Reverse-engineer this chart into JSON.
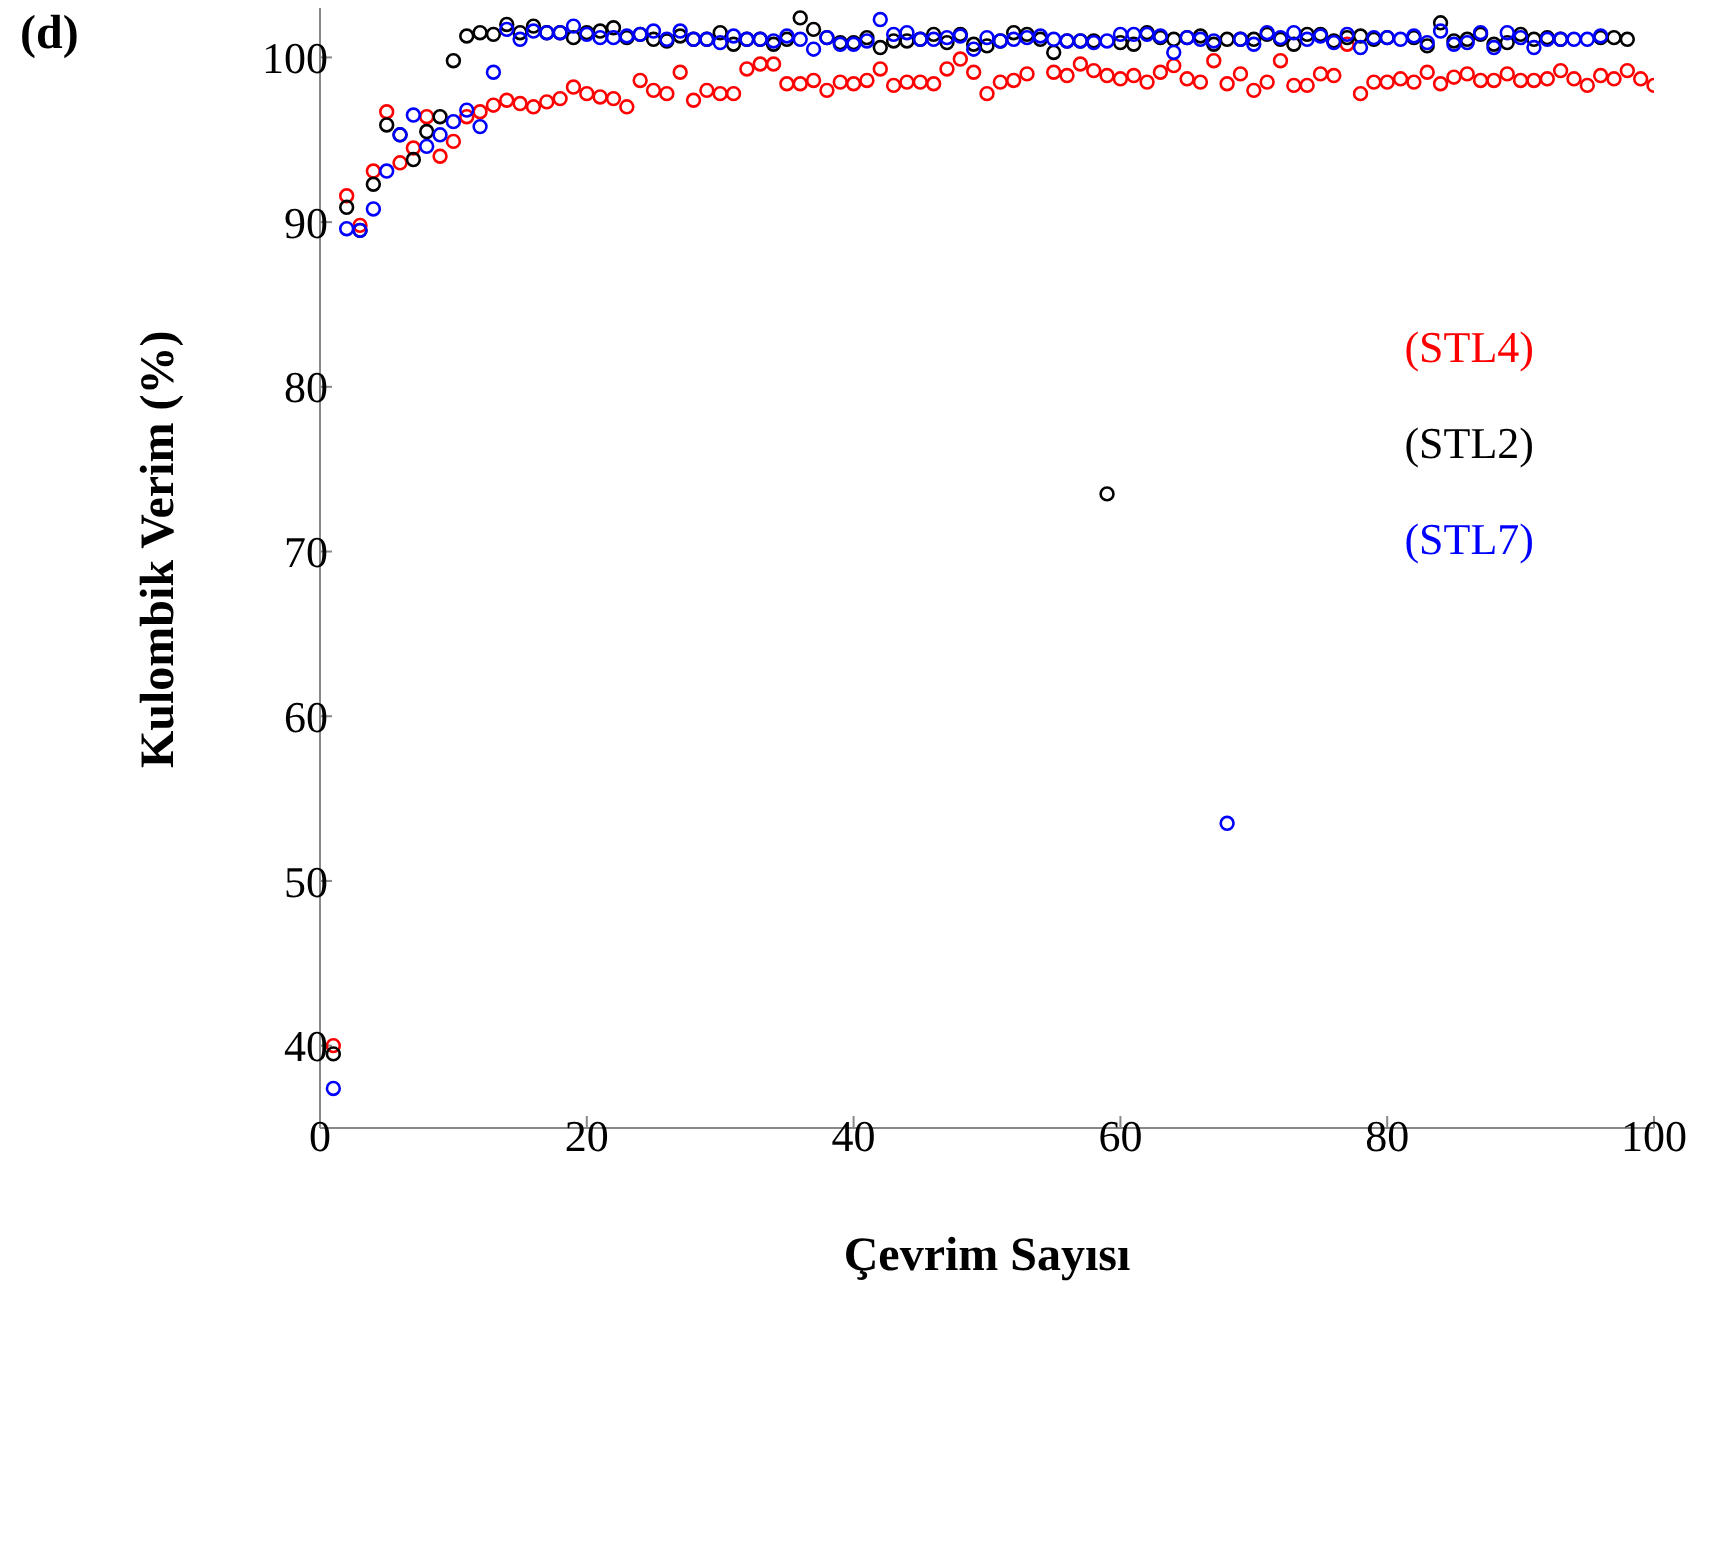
{
  "chart_data": {
    "type": "scatter",
    "title": "(d)",
    "xlabel": "Çevrim Sayısı",
    "ylabel": "Kulombik Verim (%)",
    "xlim": [
      0,
      100
    ],
    "xticks": [
      0,
      20,
      40,
      60,
      80,
      100
    ],
    "ylim": [
      35,
      103
    ],
    "yticks": [
      40,
      50,
      60,
      70,
      80,
      90,
      100
    ],
    "marker": "circle",
    "legend": "right",
    "x": [
      1,
      2,
      3,
      4,
      5,
      6,
      7,
      8,
      9,
      10,
      11,
      12,
      13,
      14,
      15,
      16,
      17,
      18,
      19,
      20,
      21,
      22,
      23,
      24,
      25,
      26,
      27,
      28,
      29,
      30,
      31,
      32,
      33,
      34,
      35,
      36,
      37,
      38,
      39,
      40,
      41,
      42,
      43,
      44,
      45,
      46,
      47,
      48,
      49,
      50,
      51,
      52,
      53,
      54,
      55,
      56,
      57,
      58,
      59,
      60,
      61,
      62,
      63,
      64,
      65,
      66,
      67,
      68,
      69,
      70,
      71,
      72,
      73,
      74,
      75,
      76,
      77,
      78,
      79,
      80,
      81,
      82,
      83,
      84,
      85,
      86,
      87,
      88,
      89,
      90,
      91,
      92,
      93,
      94,
      95,
      96,
      97,
      98,
      99,
      100
    ],
    "series": [
      {
        "name": "(STL4)",
        "color": "#ff0000",
        "values": [
          40,
          91.6,
          89.8,
          93.1,
          96.7,
          93.6,
          94.5,
          96.4,
          94,
          94.9,
          96.4,
          96.7,
          97.1,
          97.4,
          97.2,
          97,
          97.3,
          97.5,
          98.2,
          97.8,
          97.6,
          97.5,
          97,
          98.6,
          98,
          97.8,
          99.1,
          97.4,
          98,
          97.8,
          97.8,
          99.3,
          99.6,
          99.6,
          98.4,
          98.4,
          98.6,
          98,
          98.5,
          98.4,
          98.6,
          99.3,
          98.3,
          98.5,
          98.5,
          98.4,
          99.3,
          99.9,
          99.1,
          97.8,
          98.5,
          98.6,
          99,
          null,
          99.1,
          98.9,
          99.6,
          99.2,
          98.9,
          98.7,
          98.9,
          98.5,
          99.1,
          99.5,
          98.7,
          98.5,
          99.8,
          98.4,
          99,
          98,
          98.5,
          99.8,
          98.3,
          98.3,
          99,
          98.9,
          100.8,
          97.8,
          98.5,
          98.5,
          98.7,
          98.5,
          99.1,
          98.4,
          98.8,
          99,
          98.6,
          98.6,
          99,
          98.6,
          98.6,
          98.7,
          99.2,
          98.7,
          98.3,
          98.9,
          98.7,
          99.2,
          98.7,
          98.3
        ]
      },
      {
        "name": "(STL2)",
        "color": "#000000",
        "values": [
          39.5,
          90.9,
          89.5,
          92.3,
          95.9,
          95.3,
          93.8,
          95.5,
          96.4,
          99.8,
          101.3,
          101.5,
          101.4,
          102,
          101.5,
          101.9,
          101.5,
          101.5,
          101.2,
          101.5,
          101.6,
          101.8,
          101.2,
          101.4,
          101.1,
          101,
          101.3,
          101.1,
          101.1,
          101.5,
          100.8,
          101.1,
          101.1,
          100.8,
          101.1,
          102.4,
          101.7,
          101.2,
          100.9,
          100.9,
          101.2,
          100.6,
          101,
          101,
          101.1,
          101.4,
          100.9,
          101.4,
          100.8,
          100.7,
          101,
          101.5,
          101.4,
          101.1,
          100.3,
          101,
          101,
          101,
          73.5,
          100.9,
          100.8,
          101.5,
          101.2,
          101.1,
          101.2,
          101.3,
          100.8,
          101.1,
          101.1,
          101.1,
          101.4,
          101.1,
          100.8,
          101.4,
          101.4,
          101,
          101.2,
          101.3,
          101.1,
          101.2,
          null,
          101.2,
          100.7,
          102.1,
          101,
          101.1,
          101.4,
          100.8,
          100.9,
          101.4,
          101.1,
          101.2,
          101.1,
          null,
          null,
          101.2,
          101.2,
          101.1,
          null,
          null
        ]
      },
      {
        "name": "(STL7)",
        "color": "#0000ff",
        "values": [
          37.4,
          89.6,
          89.5,
          90.8,
          93.1,
          95.3,
          96.5,
          94.6,
          95.3,
          96.1,
          96.8,
          95.8,
          99.1,
          101.7,
          101.1,
          101.6,
          101.5,
          101.5,
          101.9,
          101.4,
          101.2,
          101.2,
          101.3,
          101.4,
          101.6,
          101.1,
          101.6,
          101.1,
          101.1,
          100.9,
          101.3,
          101.1,
          101.1,
          101,
          101.3,
          101.1,
          100.5,
          101.2,
          100.8,
          100.8,
          101,
          102.3,
          101.4,
          101.5,
          101.1,
          101.1,
          101.2,
          101.3,
          100.5,
          101.2,
          101,
          101.1,
          101.2,
          101.3,
          101.1,
          101,
          101,
          100.9,
          101,
          101.4,
          101.4,
          101.4,
          101.3,
          100.3,
          101.2,
          101.1,
          101,
          53.5,
          101.1,
          100.8,
          101.5,
          101.2,
          101.5,
          101.1,
          101.3,
          100.9,
          101.4,
          100.6,
          101.2,
          101.2,
          101.1,
          101.3,
          100.9,
          101.6,
          100.8,
          100.9,
          101.5,
          100.6,
          101.5,
          101.2,
          100.6,
          101.1,
          101.1,
          101.1,
          101.1,
          101.3,
          null,
          null,
          null,
          null
        ]
      }
    ]
  }
}
